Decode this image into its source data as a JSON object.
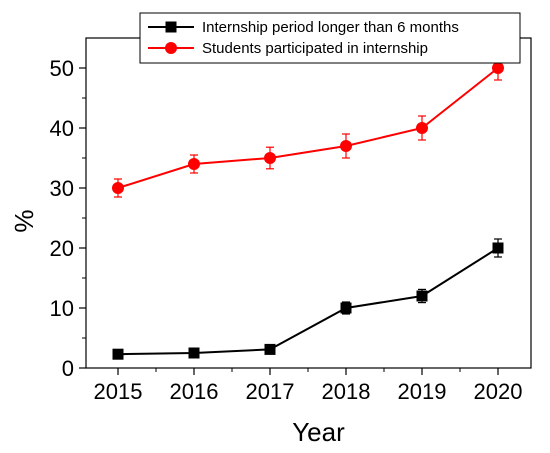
{
  "chart_data": {
    "type": "line",
    "title": "",
    "xlabel": "Year",
    "ylabel": "%",
    "x": [
      2015,
      2016,
      2017,
      2018,
      2019,
      2020
    ],
    "ylim": [
      0,
      55
    ],
    "y_ticks": [
      0,
      10,
      20,
      30,
      40,
      50
    ],
    "grid": false,
    "legend_position": "top-right",
    "series": [
      {
        "name": "Internship period longer than 6 months",
        "color": "#000000",
        "marker": "square",
        "values": [
          2.3,
          2.5,
          3.1,
          10,
          12,
          20
        ],
        "errors": [
          0.5,
          0.5,
          0.4,
          1.0,
          1.1,
          1.5
        ]
      },
      {
        "name": "Students participated in internship",
        "color": "#ff0000",
        "marker": "circle",
        "values": [
          30,
          34,
          35,
          37,
          40,
          50
        ],
        "errors": [
          1.5,
          1.5,
          1.8,
          2.0,
          2.0,
          2.0
        ]
      }
    ]
  }
}
